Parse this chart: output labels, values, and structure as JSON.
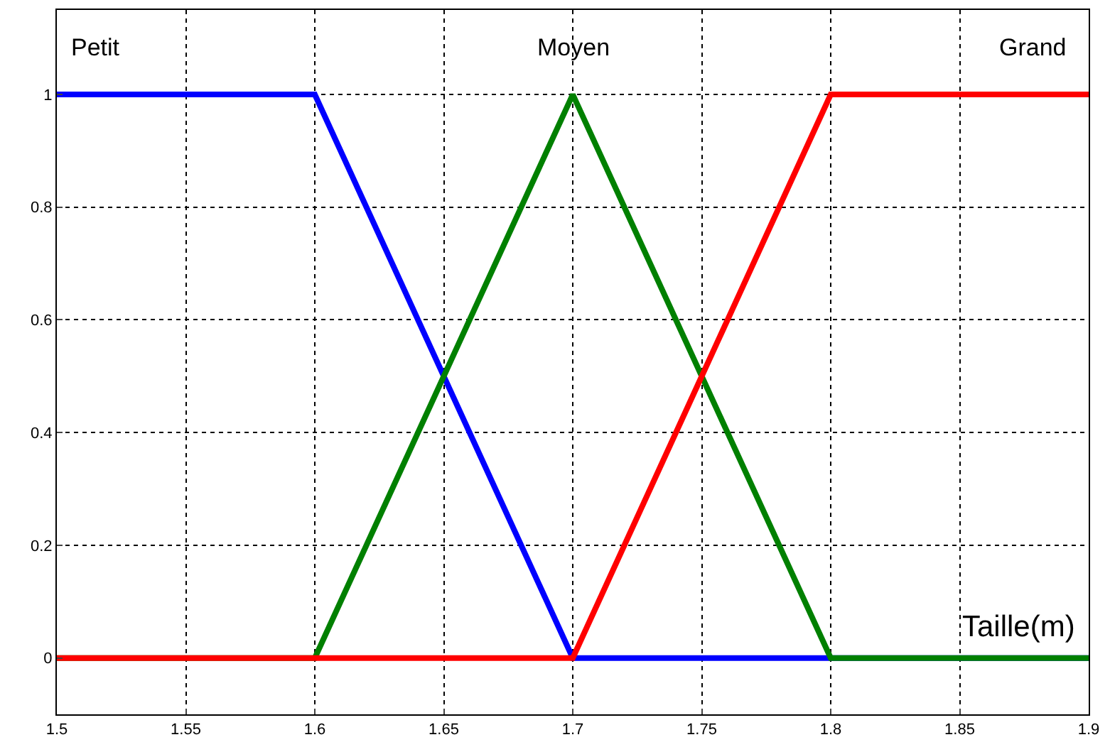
{
  "chart_data": {
    "type": "line",
    "xlabel": "Taille(m)",
    "series": [
      {
        "name": "Petit",
        "color": "#0000ff",
        "x": [
          1.5,
          1.6,
          1.7,
          1.9
        ],
        "values": [
          1,
          1,
          0,
          0
        ]
      },
      {
        "name": "Moyen",
        "color": "#008000",
        "x": [
          1.5,
          1.6,
          1.7,
          1.8,
          1.9
        ],
        "values": [
          0,
          0,
          1,
          0,
          0
        ]
      },
      {
        "name": "Grand",
        "color": "#ff0000",
        "x": [
          1.5,
          1.7,
          1.8,
          1.9
        ],
        "values": [
          0,
          0,
          1,
          1
        ]
      }
    ],
    "xlim": [
      1.5,
      1.9
    ],
    "xticks": [
      1.5,
      1.55,
      1.6,
      1.65,
      1.7,
      1.75,
      1.8,
      1.85,
      1.9
    ],
    "ylim": [
      -0.1,
      1.15
    ],
    "yticks": [
      0,
      0.2,
      0.4,
      0.6,
      0.8,
      1
    ],
    "grid": true,
    "legend": false,
    "marker": "none",
    "line_style": "solid"
  }
}
